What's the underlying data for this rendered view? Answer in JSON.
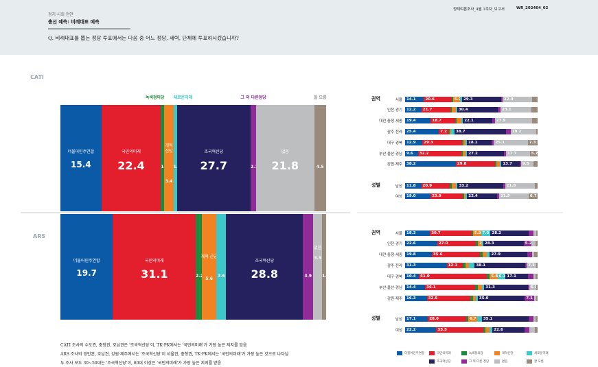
{
  "header": {
    "category": "정치·사회 현안",
    "title": "총선 예측: 비례대표 예측",
    "question": "Q. 비례대표를 뽑는 정당 투표에서는 다음 중 어느 정당, 세력, 단체에 투표하시겠습니까?",
    "report": "정례여론조사_4월 1주차_보고서",
    "code": "WR_202404_02"
  },
  "colors": [
    "#0a5aa8",
    "#e41f2d",
    "#1e8a3c",
    "#f28322",
    "#3cc8c8",
    "#24215e",
    "#8e2b97",
    "#bcbec0",
    "#9a8a7c"
  ],
  "chart_data": [
    {
      "type": "bar",
      "stacked": true,
      "section": "CATI",
      "categories": [
        "더불어민주연합",
        "국민의미래",
        "녹색정의당",
        "개혁신당",
        "새로운미래",
        "조국혁신당",
        "그 외 다른정당",
        "없음",
        "잘 모름"
      ],
      "values": [
        15.4,
        22.4,
        1.3,
        3.4,
        1.3,
        27.7,
        2.1,
        21.8,
        4.5
      ],
      "inner_labels": [
        "더불어민주연합",
        "국민의미래",
        "",
        "개혁 신당",
        "",
        "조국혁신당",
        "",
        "없음",
        ""
      ],
      "top_labels": [
        "",
        "",
        "녹색정의당",
        "",
        "새로운미래",
        "",
        "그 외 다른정당",
        "",
        "잘 모름"
      ]
    },
    {
      "type": "bar",
      "stacked": true,
      "section": "ARS",
      "categories": [
        "더불어민주연합",
        "국민의미래",
        "녹색정의당",
        "개혁신당",
        "새로운미래",
        "조국혁신당",
        "그 외 다른정당",
        "없음",
        "잘 모름"
      ],
      "values": [
        19.7,
        31.1,
        2.2,
        5.6,
        3.6,
        28.8,
        3.9,
        3.3,
        1.5
      ],
      "inner_labels": [
        "더불어민주연합",
        "국민의미래",
        "",
        "개혁 신당",
        "",
        "조국혁신당",
        "",
        "없음",
        ""
      ],
      "top_labels": [
        "",
        "",
        "",
        "",
        "",
        "",
        "",
        "",
        ""
      ]
    },
    {
      "type": "bar",
      "stacked": true,
      "horizontal": true,
      "section": "CATI",
      "groups": [
        {
          "name": "권역",
          "rows": [
            {
              "label": "서울",
              "values": [
                14.1,
                20.6,
                1.2,
                5.0,
                1.8,
                29.3,
                0.8,
                22.0,
                4.2
              ],
              "labels": [
                "14.1",
                "20.6",
                "",
                "5.0",
                "",
                "29.3",
                "",
                "22.0",
                ""
              ]
            },
            {
              "label": "인천·경기",
              "values": [
                12.2,
                21.7,
                1.0,
                3.0,
                0.8,
                30.4,
                2.0,
                23.1,
                4.5
              ],
              "labels": [
                "12.2",
                "21.7",
                "",
                "",
                "",
                "30.4",
                "",
                "23.1",
                ""
              ]
            },
            {
              "label": "대전·충청·세종",
              "values": [
                19.4,
                18.7,
                1.0,
                3.5,
                1.0,
                22.1,
                2.0,
                27.9,
                4.4
              ],
              "labels": [
                "19.4",
                "18.7",
                "",
                "",
                "",
                "22.1",
                "",
                "27.9",
                ""
              ]
            },
            {
              "label": "광주·전라",
              "values": [
                25.4,
                7.2,
                0.8,
                0.8,
                2.5,
                38.7,
                3.5,
                19.2,
                1.0
              ],
              "labels": [
                "25.4",
                "7.2",
                "",
                "",
                "",
                "38.7",
                "",
                "19.2",
                ""
              ]
            },
            {
              "label": "대구·경북",
              "values": [
                12.9,
                29.3,
                1.2,
                1.5,
                0.5,
                18.1,
                2.0,
                25.1,
                7.3
              ],
              "labels": [
                "12.9",
                "29.3",
                "",
                "",
                "",
                "18.1",
                "",
                "25.1",
                "7.3"
              ]
            },
            {
              "label": "부산·울산·경남",
              "values": [
                9.6,
                32.2,
                1.0,
                2.0,
                0.5,
                27.2,
                1.5,
                17.7,
                5.7
              ],
              "labels": [
                "9.6",
                "32.2",
                "",
                "",
                "",
                "27.2",
                "",
                "17.7",
                "5.7"
              ]
            },
            {
              "label": "강원·제주",
              "values": [
                38.2,
                29.8,
                1.0,
                2.5,
                0.5,
                13.7,
                0.5,
                9.5,
                3.0
              ],
              "labels": [
                "38.2",
                "29.8",
                "",
                "",
                "",
                "13.7",
                "",
                "9.5",
                ""
              ]
            }
          ]
        },
        {
          "name": "성별",
          "rows": [
            {
              "label": "남성",
              "values": [
                11.8,
                20.9,
                1.2,
                3.5,
                0.5,
                33.2,
                1.5,
                21.8,
                2.0
              ],
              "labels": [
                "11.8",
                "20.9",
                "",
                "",
                "",
                "33.2",
                "",
                "21.8",
                ""
              ]
            },
            {
              "label": "여성",
              "values": [
                19.0,
                23.9,
                1.0,
                1.2,
                0.5,
                22.4,
                1.5,
                21.9,
                6.7
              ],
              "labels": [
                "19.0",
                "23.9",
                "",
                "",
                "",
                "22.4",
                "",
                "21.9",
                "6.7"
              ]
            }
          ]
        }
      ]
    },
    {
      "type": "bar",
      "stacked": true,
      "horizontal": true,
      "section": "ARS",
      "groups": [
        {
          "name": "권역",
          "rows": [
            {
              "label": "서울",
              "values": [
                18.3,
                30.7,
                1.0,
                5.9,
                7.0,
                28.2,
                3.5,
                2.0,
                1.0
              ],
              "labels": [
                "18.3",
                "30.7",
                "",
                "5.9",
                "7.0",
                "28.2",
                "",
                "",
                ""
              ]
            },
            {
              "label": "인천·경기",
              "values": [
                22.6,
                27.0,
                1.5,
                2.8,
                1.0,
                28.3,
                5.2,
                3.0,
                1.5
              ],
              "labels": [
                "22.6",
                "27.0",
                "",
                "2.8",
                "",
                "28.3",
                "5.2",
                "",
                ""
              ]
            },
            {
              "label": "대전·충청·세종",
              "values": [
                19.8,
                35.6,
                2.0,
                3.0,
                2.5,
                27.9,
                3.5,
                1.5,
                2.5
              ],
              "labels": [
                "19.8",
                "35.6",
                "",
                "",
                "",
                "27.9",
                "",
                "",
                ""
              ]
            },
            {
              "label": "광주·전라",
              "values": [
                31.3,
                12.1,
                2.0,
                2.5,
                4.5,
                38.1,
                0.5,
                7.1,
                1.0
              ],
              "labels": [
                "31.3",
                "12.1",
                "",
                "",
                "",
                "38.1",
                "",
                "7.1",
                ""
              ]
            },
            {
              "label": "대구·경북",
              "values": [
                10.4,
                51.0,
                2.5,
                5.8,
                6.1,
                17.1,
                4.0,
                1.5,
                1.5
              ],
              "labels": [
                "10.4",
                "51.0",
                "",
                "5.8",
                "6.1",
                "17.1",
                "",
                "",
                ""
              ]
            },
            {
              "label": "부산·울산·경남",
              "values": [
                14.4,
                36.1,
                2.0,
                3.0,
                1.5,
                31.3,
                1.0,
                5.1,
                1.0
              ],
              "labels": [
                "14.4",
                "36.1",
                "",
                "",
                "",
                "31.3",
                "",
                "5.1",
                ""
              ]
            },
            {
              "label": "강원·제주",
              "values": [
                16.3,
                32.5,
                2.0,
                2.0,
                1.5,
                35.0,
                7.1,
                1.5,
                1.0
              ],
              "labels": [
                "16.3",
                "32.5",
                "",
                "",
                "",
                "35.0",
                "7.1",
                "",
                ""
              ]
            }
          ]
        },
        {
          "name": "성별",
          "rows": [
            {
              "label": "남성",
              "values": [
                17.1,
                28.6,
                1.5,
                6.7,
                3.5,
                35.1,
                3.5,
                1.5,
                1.5
              ],
              "labels": [
                "17.1",
                "28.6",
                "",
                "6.7",
                "",
                "35.1",
                "",
                "",
                ""
              ]
            },
            {
              "label": "여성",
              "values": [
                22.2,
                33.5,
                1.5,
                3.0,
                2.0,
                22.6,
                3.5,
                4.0,
                2.0
              ],
              "labels": [
                "22.2",
                "33.5",
                "",
                "",
                "",
                "22.6",
                "",
                "",
                ""
              ]
            }
          ]
        }
      ]
    }
  ],
  "legend": [
    "더불어민주연합",
    "국민의미래",
    "녹색정의당",
    "개혁신당",
    "새로운미래",
    "조국혁신당",
    "그 외 다른 정당",
    "없음",
    "잘 모름"
  ],
  "notes": [
    "CATI 조사의 수도권, 충청권, 호남권은 '조국혁신당'이, TK·PK에서는 '국민의미래'가 가장 높은 지지를 얻음",
    "ARS 조사의 경인권, 호남권, 강원·제주에서는 '조국혁신당'이 서울권, 충청권, TK·PK에서는 '국민의미래'가 가장 높은 것으로 나타남",
    "두 조사 모두 30~50대는 '조국혁신당'이, 60대 이상은 '국민의미래'가 가장 높은 지지를 받음"
  ]
}
